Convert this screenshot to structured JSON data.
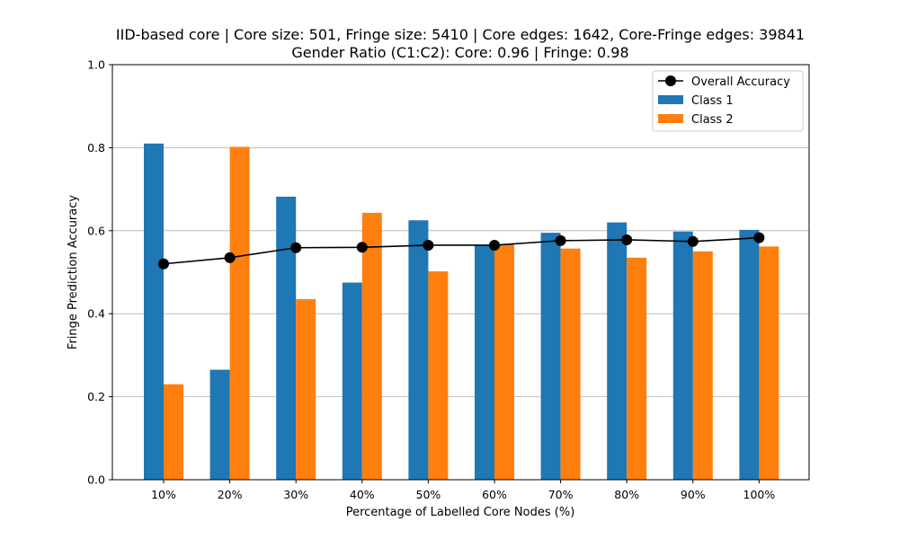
{
  "chart_data": {
    "type": "bar",
    "title": "IID-based core | Core size: 501, Fringe size: 5410 | Core edges: 1642, Core-Fringe edges: 39841",
    "subtitle": "Gender Ratio (C1:C2): Core: 0.96 | Fringe: 0.98",
    "xlabel": "Percentage of Labelled Core Nodes (%)",
    "ylabel": "Fringe Prediction Accuracy",
    "categories": [
      "10%",
      "20%",
      "30%",
      "40%",
      "50%",
      "60%",
      "70%",
      "80%",
      "90%",
      "100%"
    ],
    "ylim": [
      0,
      1.0
    ],
    "yticks": [
      "0.0",
      "0.2",
      "0.4",
      "0.6",
      "0.8",
      "1.0"
    ],
    "grid": "horizontal",
    "legend_position": "top-right",
    "series": [
      {
        "name": "Class 1",
        "kind": "bar",
        "color": "#1f77b4",
        "values": [
          0.81,
          0.265,
          0.682,
          0.475,
          0.625,
          0.565,
          0.595,
          0.62,
          0.598,
          0.602
        ]
      },
      {
        "name": "Class 2",
        "kind": "bar",
        "color": "#ff7f0e",
        "values": [
          0.23,
          0.802,
          0.435,
          0.643,
          0.502,
          0.567,
          0.557,
          0.535,
          0.55,
          0.562
        ]
      },
      {
        "name": "Overall Accuracy",
        "kind": "line",
        "color": "#000000",
        "values": [
          0.52,
          0.535,
          0.559,
          0.56,
          0.565,
          0.565,
          0.576,
          0.578,
          0.574,
          0.583
        ]
      }
    ]
  }
}
